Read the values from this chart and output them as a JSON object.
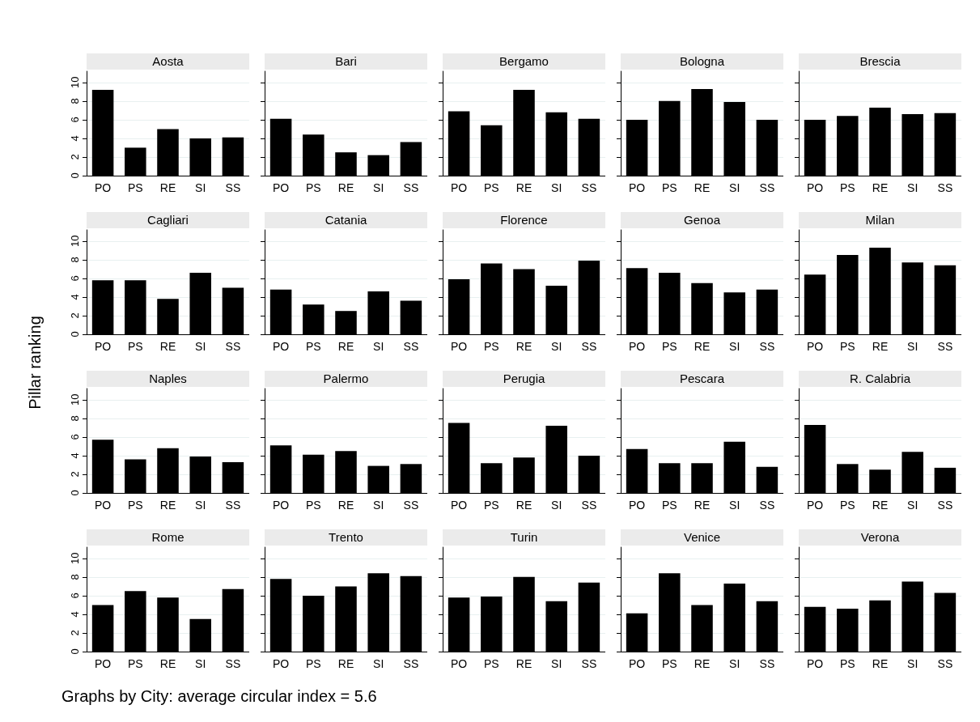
{
  "chart_data": [
    {
      "type": "bar",
      "title": "Aosta",
      "categories": [
        "PO",
        "PS",
        "RE",
        "SI",
        "SS"
      ],
      "values": [
        9.2,
        3.0,
        5.0,
        4.0,
        4.1
      ],
      "color": "#000000",
      "ylim": [
        0,
        11.2
      ],
      "yticks": [
        0,
        2,
        4,
        6,
        8,
        10
      ],
      "grid": "y"
    },
    {
      "type": "bar",
      "title": "Bari",
      "categories": [
        "PO",
        "PS",
        "RE",
        "SI",
        "SS"
      ],
      "values": [
        6.1,
        4.4,
        2.5,
        2.2,
        3.6
      ],
      "color": "#000000",
      "ylim": [
        0,
        11.2
      ],
      "yticks": [
        0,
        2,
        4,
        6,
        8,
        10
      ],
      "grid": "y",
      "tick_labels": "x"
    },
    {
      "type": "bar",
      "title": "Bergamo",
      "categories": [
        "PO",
        "PS",
        "RE",
        "SI",
        "SS"
      ],
      "values": [
        6.9,
        5.4,
        9.2,
        6.8,
        6.1
      ],
      "color": "#000000",
      "ylim": [
        0,
        11.2
      ],
      "yticks": [
        0,
        2,
        4,
        6,
        8,
        10
      ],
      "grid": "y",
      "tick_labels": "x"
    },
    {
      "type": "bar",
      "title": "Bologna",
      "categories": [
        "PO",
        "PS",
        "RE",
        "SI",
        "SS"
      ],
      "values": [
        6.0,
        8.0,
        9.3,
        7.9,
        6.0
      ],
      "color": "#000000",
      "ylim": [
        0,
        11.2
      ],
      "yticks": [
        0,
        2,
        4,
        6,
        8,
        10
      ],
      "grid": "y",
      "tick_labels": "x"
    },
    {
      "type": "bar",
      "title": "Brescia",
      "categories": [
        "PO",
        "PS",
        "RE",
        "SI",
        "SS"
      ],
      "values": [
        6.0,
        6.4,
        7.3,
        6.6,
        6.7
      ],
      "color": "#000000",
      "ylim": [
        0,
        11.2
      ],
      "yticks": [
        0,
        2,
        4,
        6,
        8,
        10
      ],
      "grid": "y",
      "tick_labels": "x"
    },
    {
      "type": "bar",
      "title": "Cagliari",
      "categories": [
        "PO",
        "PS",
        "RE",
        "SI",
        "SS"
      ],
      "values": [
        5.8,
        5.8,
        3.8,
        6.6,
        5.0
      ],
      "color": "#000000",
      "ylim": [
        0,
        11.2
      ],
      "yticks": [
        0,
        2,
        4,
        6,
        8,
        10
      ],
      "grid": "y"
    },
    {
      "type": "bar",
      "title": "Catania",
      "categories": [
        "PO",
        "PS",
        "RE",
        "SI",
        "SS"
      ],
      "values": [
        4.8,
        3.2,
        2.5,
        4.6,
        3.6
      ],
      "color": "#000000",
      "ylim": [
        0,
        11.2
      ],
      "yticks": [
        0,
        2,
        4,
        6,
        8,
        10
      ],
      "grid": "y",
      "tick_labels": "x"
    },
    {
      "type": "bar",
      "title": "Florence",
      "categories": [
        "PO",
        "PS",
        "RE",
        "SI",
        "SS"
      ],
      "values": [
        5.9,
        7.6,
        7.0,
        5.2,
        7.9
      ],
      "color": "#000000",
      "ylim": [
        0,
        11.2
      ],
      "yticks": [
        0,
        2,
        4,
        6,
        8,
        10
      ],
      "grid": "y",
      "tick_labels": "x"
    },
    {
      "type": "bar",
      "title": "Genoa",
      "categories": [
        "PO",
        "PS",
        "RE",
        "SI",
        "SS"
      ],
      "values": [
        7.1,
        6.6,
        5.5,
        4.5,
        4.8
      ],
      "color": "#000000",
      "ylim": [
        0,
        11.2
      ],
      "yticks": [
        0,
        2,
        4,
        6,
        8,
        10
      ],
      "grid": "y",
      "tick_labels": "x"
    },
    {
      "type": "bar",
      "title": "Milan",
      "categories": [
        "PO",
        "PS",
        "RE",
        "SI",
        "SS"
      ],
      "values": [
        6.4,
        8.5,
        9.3,
        7.7,
        7.4
      ],
      "color": "#000000",
      "ylim": [
        0,
        11.2
      ],
      "yticks": [
        0,
        2,
        4,
        6,
        8,
        10
      ],
      "grid": "y",
      "tick_labels": "x"
    },
    {
      "type": "bar",
      "title": "Naples",
      "ylabel": "Pillar ranking",
      "categories": [
        "PO",
        "PS",
        "RE",
        "SI",
        "SS"
      ],
      "values": [
        5.7,
        3.6,
        4.8,
        3.9,
        3.3
      ],
      "color": "#000000",
      "ylim": [
        0,
        11.2
      ],
      "yticks": [
        0,
        2,
        4,
        6,
        8,
        10
      ],
      "grid": "y"
    },
    {
      "type": "bar",
      "title": "Palermo",
      "categories": [
        "PO",
        "PS",
        "RE",
        "SI",
        "SS"
      ],
      "values": [
        5.1,
        4.1,
        4.5,
        2.9,
        3.1
      ],
      "color": "#000000",
      "ylim": [
        0,
        11.2
      ],
      "yticks": [
        0,
        2,
        4,
        6,
        8,
        10
      ],
      "grid": "y",
      "tick_labels": "x"
    },
    {
      "type": "bar",
      "title": "Perugia",
      "categories": [
        "PO",
        "PS",
        "RE",
        "SI",
        "SS"
      ],
      "values": [
        7.5,
        3.2,
        3.8,
        7.2,
        4.0
      ],
      "color": "#000000",
      "ylim": [
        0,
        11.2
      ],
      "yticks": [
        0,
        2,
        4,
        6,
        8,
        10
      ],
      "grid": "y",
      "tick_labels": "x"
    },
    {
      "type": "bar",
      "title": "Pescara",
      "categories": [
        "PO",
        "PS",
        "RE",
        "SI",
        "SS"
      ],
      "values": [
        4.7,
        3.2,
        3.2,
        5.5,
        2.8
      ],
      "color": "#000000",
      "ylim": [
        0,
        11.2
      ],
      "yticks": [
        0,
        2,
        4,
        6,
        8,
        10
      ],
      "grid": "y",
      "tick_labels": "x"
    },
    {
      "type": "bar",
      "title": "R. Calabria",
      "categories": [
        "PO",
        "PS",
        "RE",
        "SI",
        "SS"
      ],
      "values": [
        7.3,
        3.1,
        2.5,
        4.4,
        2.7
      ],
      "color": "#000000",
      "ylim": [
        0,
        11.2
      ],
      "yticks": [
        0,
        2,
        4,
        6,
        8,
        10
      ],
      "grid": "y",
      "tick_labels": "x"
    },
    {
      "type": "bar",
      "title": "Rome",
      "annotations": [
        "Graphs by City: average circular index = 5.6"
      ],
      "categories": [
        "PO",
        "PS",
        "RE",
        "SI",
        "SS"
      ],
      "values": [
        5.0,
        6.5,
        5.8,
        3.5,
        6.7
      ],
      "color": "#000000",
      "ylim": [
        0,
        11.2
      ],
      "yticks": [
        0,
        2,
        4,
        6,
        8,
        10
      ],
      "grid": "y"
    },
    {
      "type": "bar",
      "title": "Trento",
      "categories": [
        "PO",
        "PS",
        "RE",
        "SI",
        "SS"
      ],
      "values": [
        7.8,
        6.0,
        7.0,
        8.4,
        8.1
      ],
      "color": "#000000",
      "ylim": [
        0,
        11.2
      ],
      "yticks": [
        0,
        2,
        4,
        6,
        8,
        10
      ],
      "grid": "y",
      "tick_labels": "x"
    },
    {
      "type": "bar",
      "title": "Turin",
      "categories": [
        "PO",
        "PS",
        "RE",
        "SI",
        "SS"
      ],
      "values": [
        5.8,
        5.9,
        8.0,
        5.4,
        7.4
      ],
      "color": "#000000",
      "ylim": [
        0,
        11.2
      ],
      "yticks": [
        0,
        2,
        4,
        6,
        8,
        10
      ],
      "grid": "y",
      "tick_labels": "x"
    },
    {
      "type": "bar",
      "title": "Venice",
      "categories": [
        "PO",
        "PS",
        "RE",
        "SI",
        "SS"
      ],
      "values": [
        4.1,
        8.4,
        5.0,
        7.3,
        5.4
      ],
      "color": "#000000",
      "ylim": [
        0,
        11.2
      ],
      "yticks": [
        0,
        2,
        4,
        6,
        8,
        10
      ],
      "grid": "y",
      "tick_labels": "x"
    },
    {
      "type": "bar",
      "title": "Verona",
      "categories": [
        "PO",
        "PS",
        "RE",
        "SI",
        "SS"
      ],
      "values": [
        4.8,
        4.6,
        5.5,
        7.5,
        6.3
      ],
      "color": "#000000",
      "ylim": [
        0,
        11.2
      ],
      "yticks": [
        0,
        2,
        4,
        6,
        8,
        10
      ],
      "grid": "y",
      "tick_labels": "x"
    }
  ]
}
